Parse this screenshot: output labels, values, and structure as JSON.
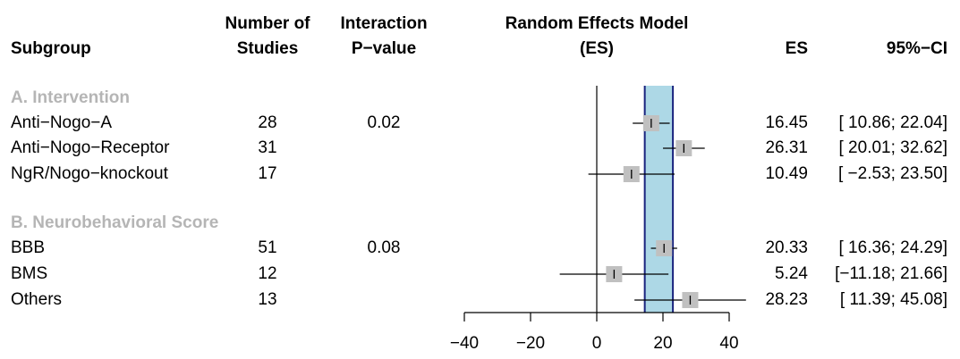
{
  "headers": {
    "subgroup": "Subgroup",
    "studies_line1": "Number of",
    "studies_line2": "Studies",
    "interaction_line1": "Interaction",
    "interaction_line2": "P−value",
    "model_line1": "Random Effects Model",
    "model_line2": "(ES)",
    "es": "ES",
    "ci": "95%−CI"
  },
  "colors": {
    "pooled_band": "#add8e6",
    "pooled_line": "#1a237e",
    "box": "#c0c0c0",
    "group_label": "#b5b5b5"
  },
  "chart_data": {
    "type": "forest",
    "xlim": [
      -40,
      40
    ],
    "ticks": [
      -40,
      -20,
      0,
      20,
      40
    ],
    "tick_labels": [
      "−40",
      "−20",
      "0",
      "20",
      "40"
    ],
    "pooled_ci": [
      14.5,
      23.0
    ],
    "groups": [
      {
        "label": "A. Intervention",
        "rows": [
          {
            "name": "Anti−Nogo−A",
            "n": "28",
            "p": "0.02",
            "es": 16.45,
            "lo": 10.86,
            "hi": 22.04,
            "es_text": "16.45",
            "ci_text": "[ 10.86; 22.04]"
          },
          {
            "name": "Anti−Nogo−Receptor",
            "n": "31",
            "p": "",
            "es": 26.31,
            "lo": 20.01,
            "hi": 32.62,
            "es_text": "26.31",
            "ci_text": "[ 20.01; 32.62]"
          },
          {
            "name": "NgR/Nogo−knockout",
            "n": "17",
            "p": "",
            "es": 10.49,
            "lo": -2.53,
            "hi": 23.5,
            "es_text": "10.49",
            "ci_text": "[ −2.53; 23.50]"
          }
        ]
      },
      {
        "label": "B. Neurobehavioral Score",
        "rows": [
          {
            "name": "BBB",
            "n": "51",
            "p": "0.08",
            "es": 20.33,
            "lo": 16.36,
            "hi": 24.29,
            "es_text": "20.33",
            "ci_text": "[ 16.36; 24.29]"
          },
          {
            "name": "BMS",
            "n": "12",
            "p": "",
            "es": 5.24,
            "lo": -11.18,
            "hi": 21.66,
            "es_text": "5.24",
            "ci_text": "[−11.18; 21.66]"
          },
          {
            "name": "Others",
            "n": "13",
            "p": "",
            "es": 28.23,
            "lo": 11.39,
            "hi": 45.08,
            "es_text": "28.23",
            "ci_text": "[ 11.39; 45.08]"
          }
        ]
      }
    ]
  }
}
